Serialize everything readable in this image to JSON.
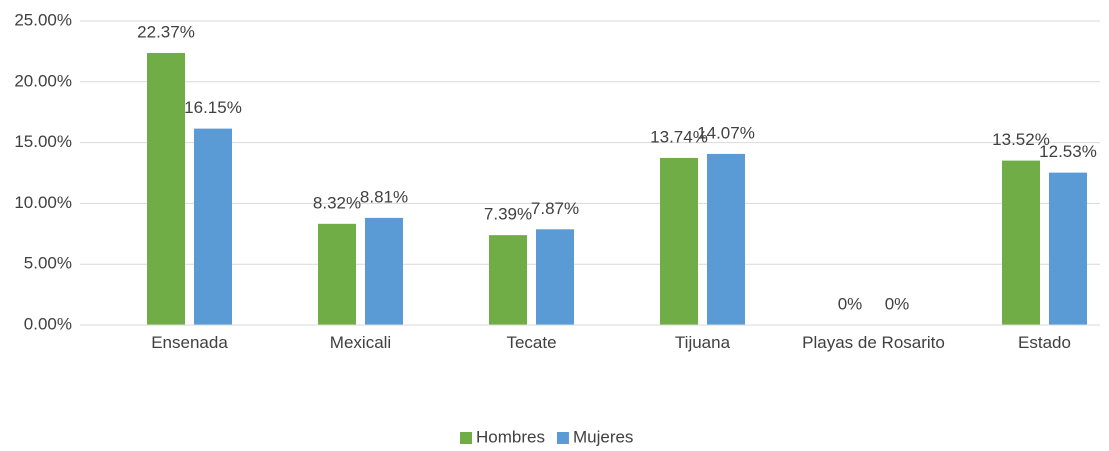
{
  "chart_data": {
    "type": "bar",
    "categories": [
      "Ensenada",
      "Mexicali",
      "Tecate",
      "Tijuana",
      "Playas de Rosarito",
      "Estado"
    ],
    "series": [
      {
        "name": "Hombres",
        "color": "#70ad47",
        "values": [
          22.37,
          8.32,
          7.39,
          13.74,
          0,
          13.52
        ],
        "value_labels": [
          "22.37%",
          "8.32%",
          "7.39%",
          "13.74%",
          "0%",
          "13.52%"
        ]
      },
      {
        "name": "Mujeres",
        "color": "#5b9bd5",
        "values": [
          16.15,
          8.81,
          7.87,
          14.07,
          0,
          12.53
        ],
        "value_labels": [
          "16.15%",
          "8.81%",
          "7.87%",
          "14.07%",
          "0%",
          "12.53%"
        ]
      }
    ],
    "ylim": [
      0,
      25
    ],
    "yticks": [
      {
        "value": 0,
        "label": "0.00%"
      },
      {
        "value": 5,
        "label": "5.00%"
      },
      {
        "value": 10,
        "label": "10.00%"
      },
      {
        "value": 15,
        "label": "15.00%"
      },
      {
        "value": 20,
        "label": "20.00%"
      },
      {
        "value": 25,
        "label": "25.00%"
      }
    ],
    "grid": true,
    "legend": "bottom"
  }
}
